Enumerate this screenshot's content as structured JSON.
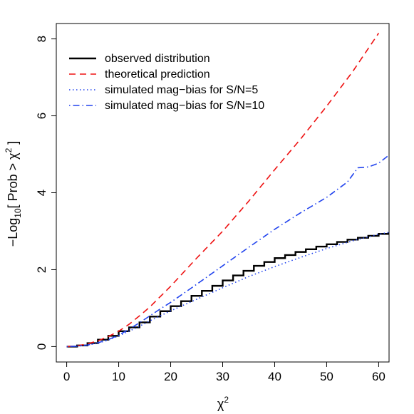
{
  "chart_data": {
    "type": "line",
    "title": "",
    "xlabel": {
      "main": "χ",
      "sup": "2"
    },
    "ylabel": {
      "prefix": "−Log",
      "sub": "10",
      "mid": "[ Prob > χ",
      "sup": "2",
      "suffix": " ]"
    },
    "xlim": [
      -2,
      62
    ],
    "ylim": [
      -0.4,
      8.4
    ],
    "x_ticks": [
      0,
      10,
      20,
      30,
      40,
      50,
      60
    ],
    "y_ticks": [
      0,
      2,
      4,
      6,
      8
    ],
    "grid": false,
    "legend_position": "top-left",
    "series": [
      {
        "name": "observed distribution",
        "style": "step",
        "color": "#000000",
        "x": [
          0,
          2,
          4,
          6,
          8,
          10,
          12,
          14,
          16,
          18,
          20,
          22,
          24,
          26,
          28,
          30,
          32,
          34,
          36,
          38,
          40,
          42,
          44,
          46,
          48,
          50,
          52,
          54,
          56,
          58,
          60,
          62
        ],
        "values": [
          0,
          0.03,
          0.09,
          0.18,
          0.28,
          0.4,
          0.5,
          0.63,
          0.78,
          0.92,
          1.05,
          1.18,
          1.32,
          1.45,
          1.58,
          1.72,
          1.85,
          1.97,
          2.1,
          2.2,
          2.3,
          2.38,
          2.46,
          2.53,
          2.6,
          2.66,
          2.72,
          2.78,
          2.83,
          2.88,
          2.93,
          2.97
        ]
      },
      {
        "name": "theoretical prediction",
        "style": "dashed",
        "color": "#ee1111",
        "x": [
          0,
          2,
          4,
          6,
          8,
          10,
          12,
          14,
          16,
          18,
          20,
          25,
          30,
          35,
          40,
          45,
          50,
          55,
          60
        ],
        "values": [
          0,
          0.02,
          0.07,
          0.15,
          0.26,
          0.4,
          0.58,
          0.8,
          1.03,
          1.3,
          1.57,
          2.3,
          3.0,
          3.78,
          4.6,
          5.4,
          6.25,
          7.15,
          8.15
        ]
      },
      {
        "name": "simulated mag−bias for S/N=5",
        "style": "dotted",
        "color": "#2244ee",
        "x": [
          0,
          2,
          4,
          6,
          8,
          10,
          12,
          14,
          16,
          18,
          20,
          25,
          30,
          35,
          40,
          45,
          50,
          55,
          60,
          62
        ],
        "values": [
          0,
          0.01,
          0.04,
          0.09,
          0.17,
          0.28,
          0.4,
          0.53,
          0.67,
          0.8,
          0.93,
          1.23,
          1.53,
          1.82,
          2.08,
          2.32,
          2.55,
          2.75,
          2.92,
          2.97
        ]
      },
      {
        "name": "simulated mag−bias for S/N=10",
        "style": "dotdash",
        "color": "#2244ee",
        "x": [
          0,
          2,
          4,
          6,
          8,
          10,
          12,
          14,
          16,
          18,
          20,
          25,
          30,
          35,
          40,
          45,
          50,
          54,
          56,
          58,
          60,
          62
        ],
        "values": [
          0,
          0.01,
          0.04,
          0.1,
          0.18,
          0.3,
          0.45,
          0.62,
          0.8,
          0.98,
          1.15,
          1.62,
          2.1,
          2.58,
          3.05,
          3.48,
          3.88,
          4.28,
          4.65,
          4.67,
          4.77,
          4.98
        ]
      }
    ]
  }
}
